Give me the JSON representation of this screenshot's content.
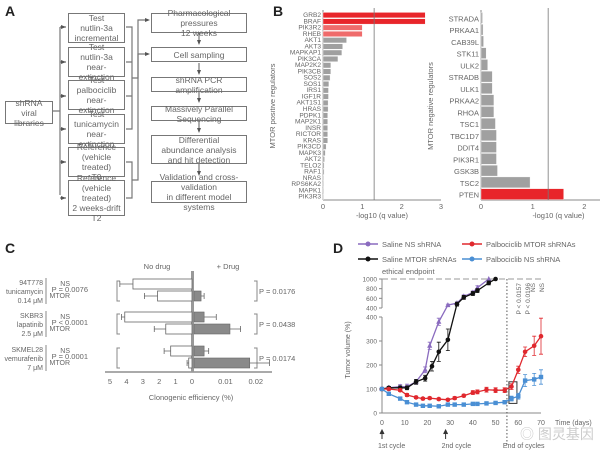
{
  "panel_labels": [
    "A",
    "B",
    "C",
    "D"
  ],
  "panelA": {
    "source_box": "shRNA\nviral libraries",
    "condition_boxes": [
      "Test\nnutlin-3a\nincremental",
      "Test\nnutlin-3a\nnear-extinction",
      "Test\npalbociclib\nnear-extinction",
      "Test\ntunicamycin\nnear-extinction",
      "Reference\n(vehicle treated)\nT0",
      "Reference\n(vehicle treated)\n2 weeks-drift\nT2"
    ],
    "pipeline_steps": [
      "Pharmacological pressures\n12 weeks",
      "Cell sampling",
      "shRNA PCR amplification",
      "Massively Parallel Sequencing",
      "Differential\nabundance analysis\nand hit detection",
      "Validation and cross-validation\nin different model systems"
    ]
  },
  "chart_data": [
    {
      "id": "B-positive",
      "type": "bar",
      "orientation": "horizontal",
      "ylabel": "MTOR positive regulators",
      "xlabel": "-log10 (q value)",
      "xlim": [
        0,
        3
      ],
      "xticks": [
        0,
        1,
        2,
        3
      ],
      "threshold": 1.3,
      "categories": [
        "GRB2",
        "BRAF",
        "PIK3R2",
        "RHEB",
        "AKT1",
        "AKT3",
        "MAPKAP1",
        "PIK3CA",
        "MAP2K2",
        "PIK3CB",
        "SOS2",
        "SOS1",
        "IRS1",
        "IGF1R",
        "AKT1S1",
        "HRAS",
        "PDPK1",
        "MAP2K1",
        "INSR",
        "RICTOR",
        "KRAS",
        "PIK3CD",
        "MAPK3",
        "AKT2",
        "TELO2",
        "RAF1",
        "NRAS",
        "RPS6KA2",
        "MAPK1",
        "PIK3R3"
      ],
      "values": [
        2.6,
        2.6,
        1.0,
        1.0,
        0.6,
        0.5,
        0.48,
        0.38,
        0.2,
        0.2,
        0.18,
        0.15,
        0.14,
        0.14,
        0.13,
        0.13,
        0.12,
        0.12,
        0.12,
        0.12,
        0.12,
        0.08,
        0.06,
        0.04,
        0.03,
        0.03,
        0.02,
        0.02,
        0.02,
        0.01
      ],
      "highlight": {
        "GRB2": "#e8252a",
        "BRAF": "#e8252a",
        "PIK3R2": "#ef6b6b",
        "RHEB": "#ef6b6b"
      },
      "bar_color": "#a0a0a0"
    },
    {
      "id": "B-negative",
      "type": "bar",
      "orientation": "horizontal",
      "ylabel": "MTOR negative regulators",
      "xlabel": "-log10 (q value)",
      "xlim": [
        0,
        3
      ],
      "xticks": [
        0,
        1,
        2,
        3
      ],
      "threshold": 1.3,
      "categories": [
        "STRADA",
        "PRKAA1",
        "CAB39L",
        "STK11",
        "ULK2",
        "STRADB",
        "ULK1",
        "PRKAA2",
        "RHOA",
        "TSC1",
        "TBC1D7",
        "DDIT4",
        "PIK3R1",
        "GSK3B",
        "TSC2",
        "PTEN"
      ],
      "values": [
        0.03,
        0.04,
        0.05,
        0.1,
        0.13,
        0.22,
        0.22,
        0.25,
        0.25,
        0.28,
        0.3,
        0.3,
        0.3,
        0.32,
        0.95,
        1.6
      ],
      "highlight": {
        "PTEN": "#e8252a"
      },
      "bar_color": "#a0a0a0"
    },
    {
      "id": "C",
      "type": "bar",
      "orientation": "horizontal",
      "title_left": "No drug",
      "title_right": "+ Drug",
      "xlabel": "Clonogenic efficiency (%)",
      "left_xlim": [
        0,
        5
      ],
      "left_xticks": [
        5,
        4,
        3,
        2,
        1,
        0
      ],
      "right_xlim": [
        0,
        0.025
      ],
      "right_xticks": [
        "0.01",
        "0.02"
      ],
      "groups": [
        {
          "cell_line": "94T778\ntunicamycin\n0.14 μM",
          "p_left": "P = 0.0076",
          "p_right": "P = 0.0176",
          "rows": [
            {
              "label": "NS",
              "no_drug": 3.6,
              "no_drug_err": 0.8,
              "drug": 0.0,
              "drug_err": 0.0
            },
            {
              "label": "MTOR",
              "no_drug": 2.1,
              "no_drug_err": 0.8,
              "drug": 0.002,
              "drug_err": 0.001
            }
          ]
        },
        {
          "cell_line": "SKBR3\nlapatinib\n2.5 μM",
          "p_left": "P < 0.0001",
          "p_right": "P = 0.0438",
          "rows": [
            {
              "label": "NS",
              "no_drug": 4.1,
              "no_drug_err": 0.2,
              "drug": 0.003,
              "drug_err": 0.004
            },
            {
              "label": "MTOR",
              "no_drug": 1.6,
              "no_drug_err": 0.7,
              "drug": 0.0115,
              "drug_err": 0.0035
            }
          ]
        },
        {
          "cell_line": "SKMEL28\nvemurafenib\n7 μM",
          "p_left": "P = 0.0001",
          "p_right": "P = 0.0174",
          "rows": [
            {
              "label": "NS",
              "no_drug": 1.3,
              "no_drug_err": 0.4,
              "drug": 0.003,
              "drug_err": 0.0015
            },
            {
              "label": "MTOR",
              "no_drug": 0.2,
              "no_drug_err": 0.1,
              "drug": 0.018,
              "drug_err": 0.0065
            }
          ]
        }
      ]
    },
    {
      "id": "D",
      "type": "line",
      "xlabel": "Time (days)",
      "ylabel": "Tumor volume (%)",
      "xlim": [
        0,
        70
      ],
      "xticks": [
        0,
        10,
        20,
        30,
        40,
        50,
        60,
        70
      ],
      "ylim_lower": [
        0,
        400
      ],
      "yticks_lower": [
        0,
        100,
        200,
        300,
        400
      ],
      "ylim_upper": [
        400,
        1000
      ],
      "yticks_upper": [
        400,
        600,
        800,
        1000
      ],
      "endpoint_label": "ethical endpoint",
      "endpoint_value": 1000,
      "drug_end_day": 55,
      "annotations": [
        "P < 0.0157",
        "P < 0.0196",
        "NS",
        "NS"
      ],
      "cycle_labels": [
        "1st cycle",
        "2nd cycle",
        "End of cycles"
      ],
      "cycle_days": [
        0,
        28,
        55
      ],
      "series": [
        {
          "name": "Saline NS shRNA",
          "color": "#8a6bbf",
          "marker": "triangle",
          "x": [
            0,
            3,
            8,
            11,
            15,
            19,
            21,
            25,
            29,
            33,
            36,
            40,
            42,
            47
          ],
          "y": [
            100,
            105,
            110,
            110,
            130,
            180,
            280,
            380,
            460,
            500,
            640,
            720,
            820,
            1000
          ],
          "err": [
            5,
            6,
            8,
            10,
            10,
            12,
            15,
            15,
            20,
            20,
            30,
            30,
            40,
            0
          ]
        },
        {
          "name": "Saline MTOR shRNAs",
          "color": "#111111",
          "marker": "circle",
          "x": [
            0,
            3,
            8,
            11,
            15,
            19,
            22,
            25,
            29,
            33,
            36,
            40,
            42,
            47,
            50
          ],
          "y": [
            100,
            105,
            105,
            105,
            130,
            145,
            195,
            255,
            305,
            480,
            620,
            700,
            760,
            920,
            1000
          ],
          "err": [
            5,
            6,
            8,
            8,
            10,
            12,
            20,
            40,
            45,
            40,
            40,
            40,
            40,
            40,
            0
          ]
        },
        {
          "name": "Palbociclib MTOR shRNAs",
          "color": "#e0282e",
          "marker": "circle",
          "x": [
            0,
            3,
            8,
            11,
            15,
            18,
            21,
            25,
            29,
            32,
            36,
            40,
            42,
            46,
            50,
            54,
            57,
            60,
            63,
            67,
            70
          ],
          "y": [
            100,
            100,
            95,
            75,
            65,
            60,
            62,
            58,
            55,
            62,
            72,
            85,
            88,
            97,
            95,
            95,
            110,
            180,
            255,
            280,
            320
          ],
          "err": [
            5,
            5,
            6,
            6,
            5,
            5,
            5,
            5,
            5,
            6,
            6,
            8,
            8,
            10,
            10,
            10,
            12,
            15,
            20,
            40,
            75
          ]
        },
        {
          "name": "Palbociclib NS shRNA",
          "color": "#4a8fd4",
          "marker": "square",
          "x": [
            0,
            3,
            8,
            11,
            15,
            18,
            21,
            25,
            29,
            32,
            36,
            40,
            42,
            46,
            50,
            54,
            57,
            60,
            63,
            67,
            70
          ],
          "y": [
            100,
            80,
            60,
            45,
            35,
            30,
            30,
            28,
            35,
            35,
            35,
            38,
            38,
            40,
            42,
            45,
            60,
            70,
            135,
            140,
            150
          ],
          "err": [
            5,
            6,
            6,
            5,
            5,
            4,
            4,
            4,
            4,
            4,
            4,
            4,
            4,
            4,
            5,
            6,
            10,
            12,
            25,
            25,
            30
          ]
        }
      ]
    }
  ],
  "watermark": "◎ 图灵基因"
}
